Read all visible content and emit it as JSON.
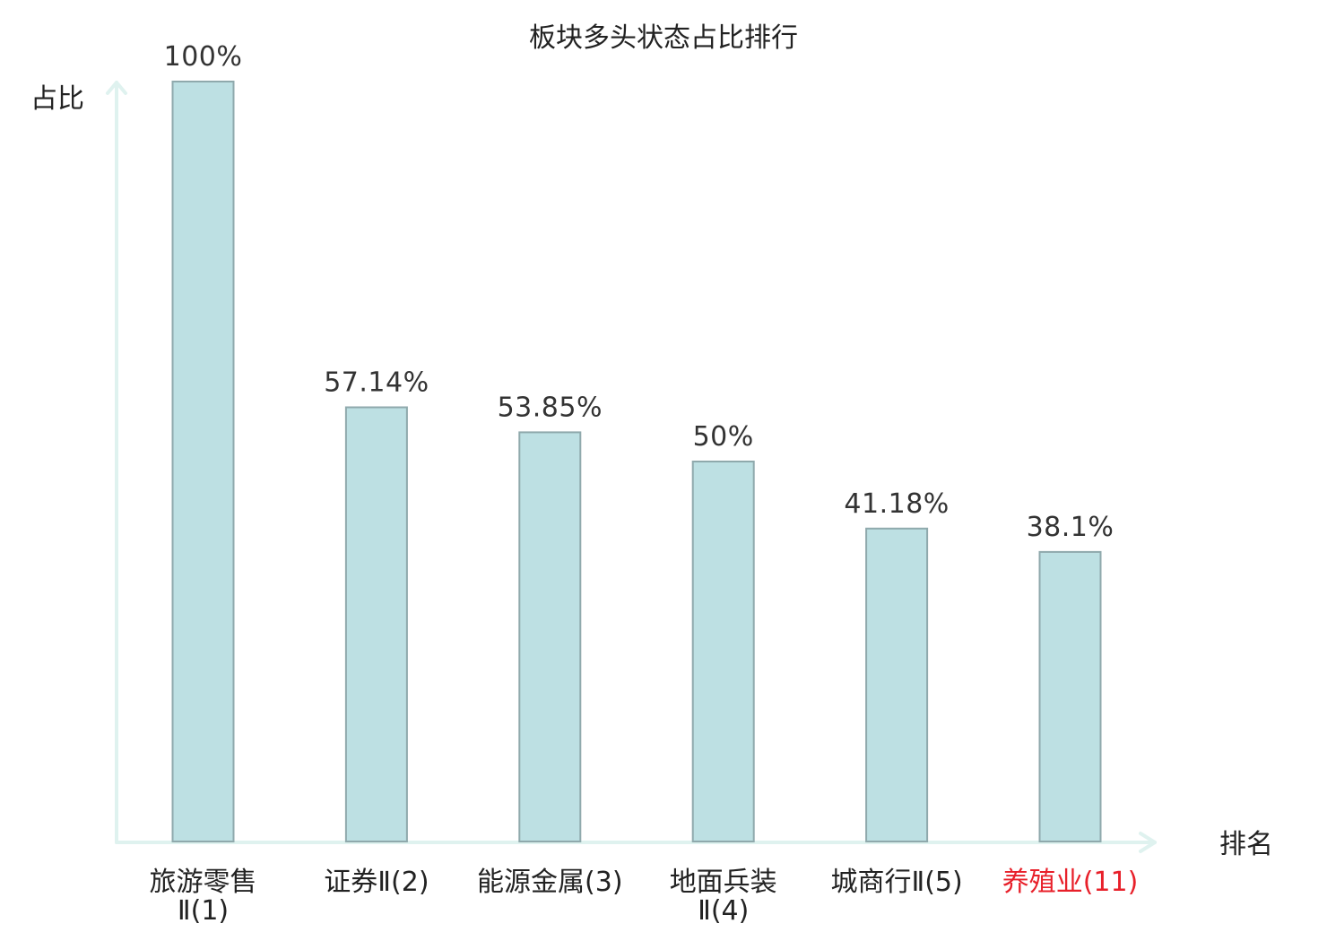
{
  "chart_data": {
    "type": "bar",
    "title": "板块多头状态占比排行",
    "ylabel": "占比",
    "xlabel": "排名",
    "ylim": [
      0,
      100
    ],
    "grid": false,
    "categories": [
      {
        "lines": [
          "旅游零售",
          "Ⅱ(1)"
        ],
        "highlight": false
      },
      {
        "lines": [
          "证券Ⅱ(2)"
        ],
        "highlight": false
      },
      {
        "lines": [
          "能源金属(3)"
        ],
        "highlight": false
      },
      {
        "lines": [
          "地面兵装",
          "Ⅱ(4)"
        ],
        "highlight": false
      },
      {
        "lines": [
          "城商行Ⅱ(5)"
        ],
        "highlight": false
      },
      {
        "lines": [
          "养殖业(11)"
        ],
        "highlight": true
      }
    ],
    "values": [
      100,
      57.14,
      53.85,
      50,
      41.18,
      38.1
    ],
    "value_labels": [
      "100%",
      "57.14%",
      "53.85%",
      "50%",
      "41.18%",
      "38.1%"
    ]
  },
  "colors": {
    "bar_fill": "#bde0e3",
    "bar_stroke": "#8fa9ac",
    "axis": "#dff2ef",
    "text": "#222222",
    "value_text": "#333333",
    "highlight": "#e8202a"
  }
}
